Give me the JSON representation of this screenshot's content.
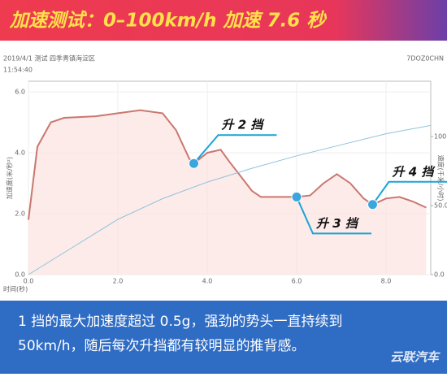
{
  "chart_data": {
    "type": "line",
    "title": "加速测试：0–100km/h 加速 7.6 秒",
    "header_left": "2019/4/1 测试 四季青镇海淀区",
    "header_time": "11:54:40",
    "header_right": "7DOZ0CHN",
    "xlabel": "时间(秒)",
    "ylabel": "加速度(米/秒²)",
    "y2label": "速度(千米/小时)",
    "xlim": [
      0,
      9
    ],
    "ylim": [
      0,
      6.35
    ],
    "y2lim": [
      0,
      140
    ],
    "xticks": [
      {
        "value": 0,
        "label": "0.0"
      },
      {
        "value": 2,
        "label": "2.0"
      },
      {
        "value": 4,
        "label": "4.0"
      },
      {
        "value": 6,
        "label": "6.0"
      },
      {
        "value": 8,
        "label": "8.0"
      }
    ],
    "yticks": [
      {
        "value": 0,
        "label": "0.0"
      },
      {
        "value": 2,
        "label": "2.0"
      },
      {
        "value": 4,
        "label": "4.0"
      },
      {
        "value": 6,
        "label": "6.0"
      }
    ],
    "y2ticks": [
      {
        "value": 0,
        "label": "0.0"
      },
      {
        "value": 50,
        "label": "50.0"
      },
      {
        "value": 100,
        "label": "100.0"
      }
    ],
    "grid": true,
    "series": [
      {
        "name": "加速度",
        "color": "#c9776f",
        "x": [
          0,
          0.2,
          0.5,
          0.8,
          1.5,
          2.0,
          2.5,
          3.0,
          3.3,
          3.6,
          3.7,
          4.0,
          4.3,
          4.5,
          5.0,
          5.2,
          5.5,
          6.0,
          6.3,
          6.6,
          6.9,
          7.2,
          7.5,
          7.7,
          8.0,
          8.3,
          8.6,
          8.9
        ],
        "values": [
          1.8,
          4.2,
          5.0,
          5.15,
          5.2,
          5.3,
          5.4,
          5.3,
          4.75,
          3.8,
          3.65,
          4.0,
          4.1,
          3.7,
          2.75,
          2.55,
          2.55,
          2.55,
          2.6,
          3.0,
          3.3,
          3.0,
          2.5,
          2.3,
          2.5,
          2.55,
          2.4,
          2.2
        ]
      },
      {
        "name": "速度",
        "color": "#8fc3dc",
        "axis": "y2",
        "x": [
          0,
          1,
          2,
          3,
          4,
          5,
          6,
          7,
          8,
          9
        ],
        "values": [
          0,
          20,
          40,
          55,
          67,
          77,
          86,
          94,
          102,
          108
        ]
      }
    ],
    "shift_points": [
      {
        "label": "升 2 挡",
        "x": 3.7,
        "y": 3.65
      },
      {
        "label": "升 3 挡",
        "x": 6.0,
        "y": 2.55
      },
      {
        "label": "升 4 挡",
        "x": 7.7,
        "y": 2.3
      }
    ],
    "caption": [
      "1 挡的最大加速度超过 0.5g，强劲的势头一直持续到",
      "50km/h，随后每次升挡都有较明显的推背感。"
    ],
    "watermark": "云联汽车"
  }
}
